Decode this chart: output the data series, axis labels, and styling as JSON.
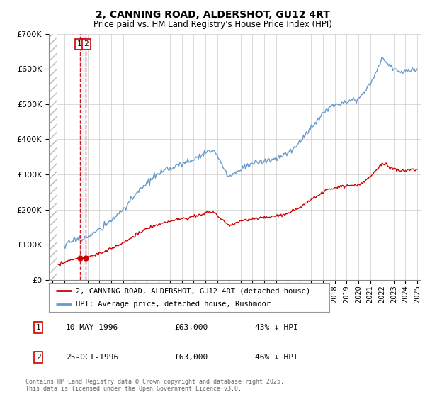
{
  "title": "2, CANNING ROAD, ALDERSHOT, GU12 4RT",
  "subtitle": "Price paid vs. HM Land Registry's House Price Index (HPI)",
  "legend_line1": "2, CANNING ROAD, ALDERSHOT, GU12 4RT (detached house)",
  "legend_line2": "HPI: Average price, detached house, Rushmoor",
  "copyright": "Contains HM Land Registry data © Crown copyright and database right 2025.\nThis data is licensed under the Open Government Licence v3.0.",
  "sales": [
    {
      "num": 1,
      "date": "10-MAY-1996",
      "price": "£63,000",
      "hpi": "43% ↓ HPI",
      "year": 1996.36
    },
    {
      "num": 2,
      "date": "25-OCT-1996",
      "price": "£63,000",
      "hpi": "46% ↓ HPI",
      "year": 1996.82
    }
  ],
  "sale_price": 63000,
  "ylim": [
    0,
    700000
  ],
  "xlim_start": 1993.7,
  "xlim_end": 2025.3,
  "hatch_end": 1994.42,
  "red_line_color": "#cc0000",
  "blue_line_color": "#6699cc",
  "background_color": "#ffffff",
  "grid_color": "#cccccc",
  "hatch_color": "#bbbbbb",
  "x_tick_start": 1994,
  "x_tick_end": 2025
}
